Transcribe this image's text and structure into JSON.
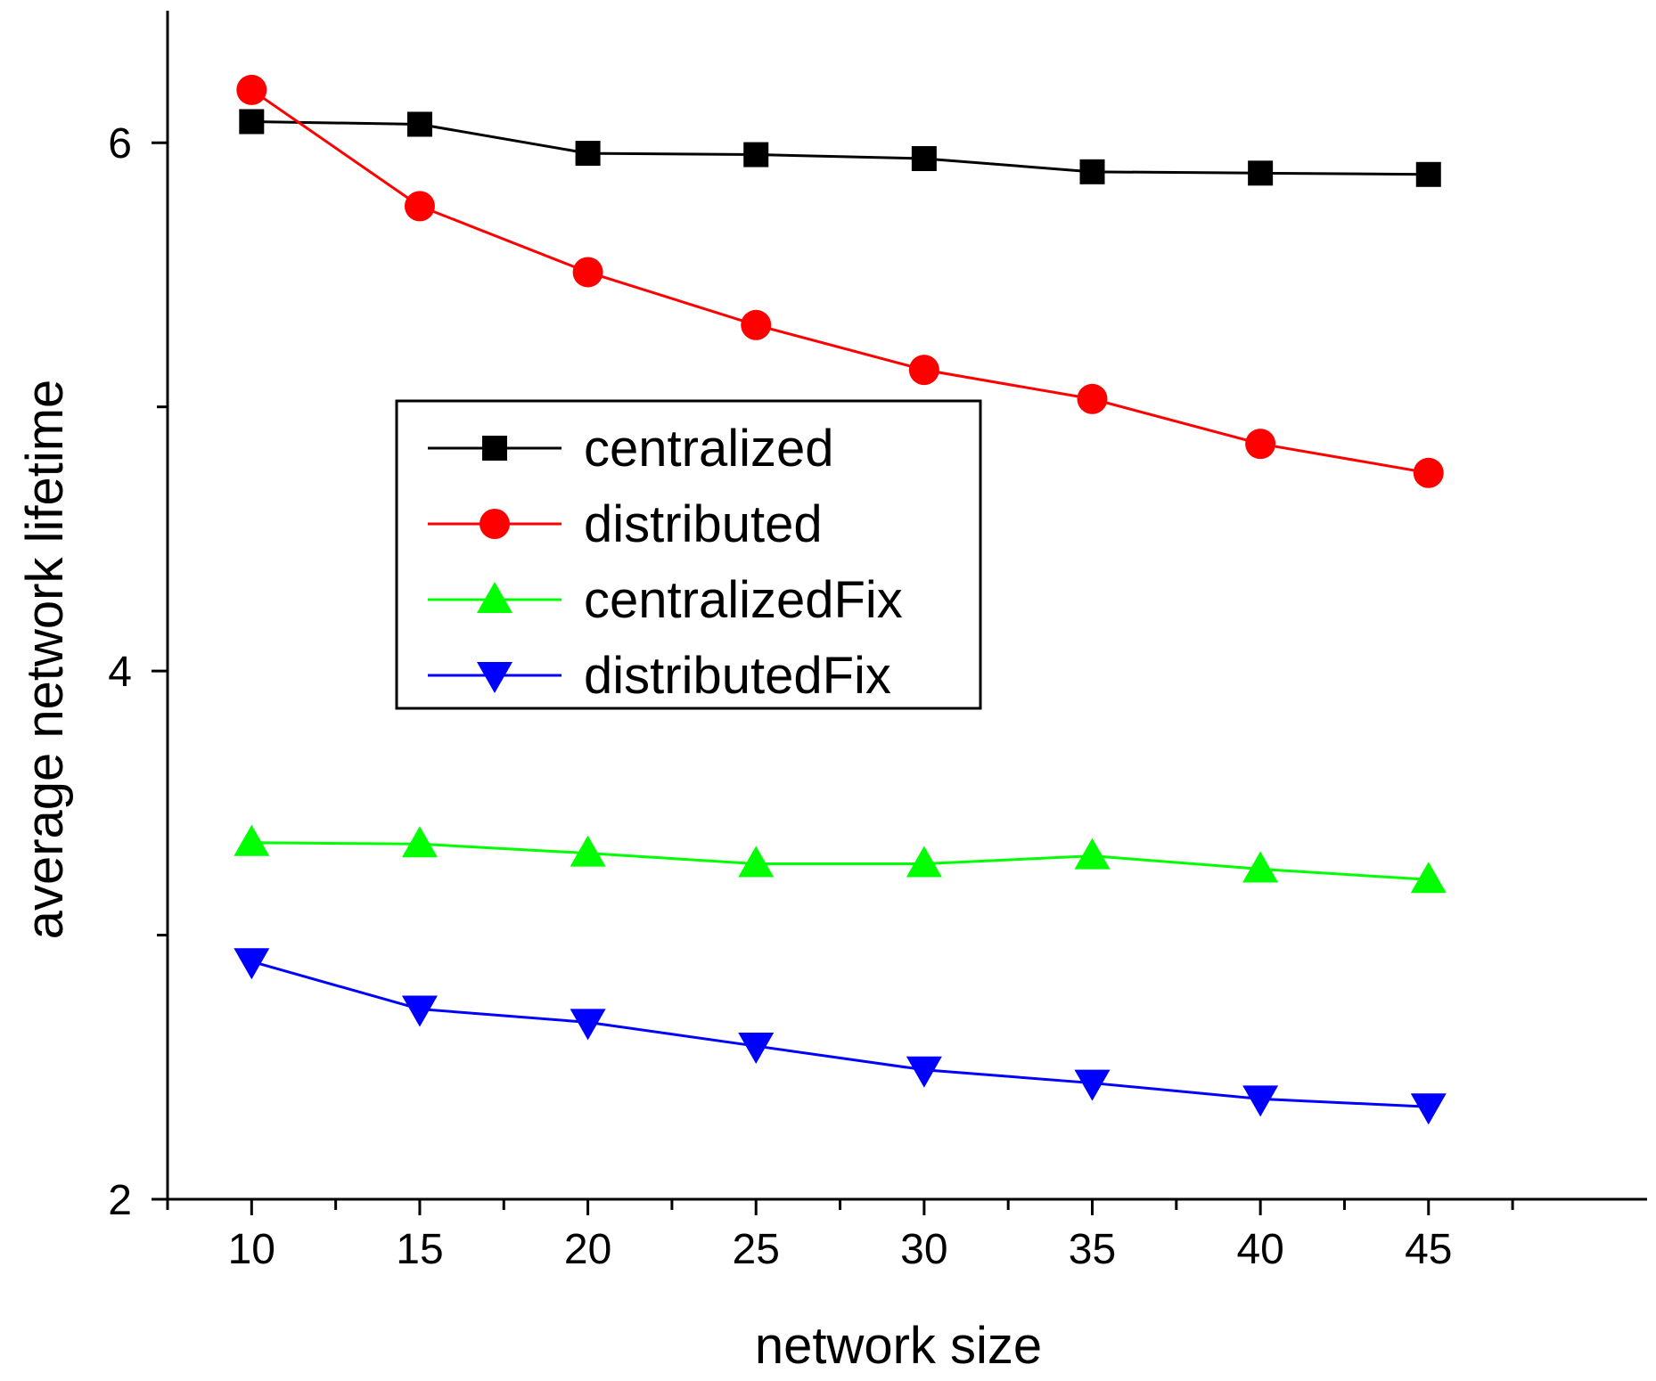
{
  "chart_data": {
    "type": "line",
    "title": "",
    "xlabel": "network size",
    "ylabel": "average network lifetime",
    "x": [
      10,
      15,
      20,
      25,
      30,
      35,
      40,
      45
    ],
    "xlim": [
      7.5,
      51.5
    ],
    "ylim": [
      2,
      6.5
    ],
    "x_ticks_major": [
      10,
      15,
      20,
      25,
      30,
      35,
      40,
      45
    ],
    "x_tick_labels": [
      "10",
      "15",
      "20",
      "25",
      "30",
      "35",
      "40",
      "45"
    ],
    "y_ticks_major": [
      2,
      4,
      6
    ],
    "y_tick_labels": [
      "2",
      "4",
      "6"
    ],
    "y_ticks_minor": [
      3,
      5
    ],
    "grid": false,
    "legend_position": "center-left",
    "series": [
      {
        "name": "centralized",
        "color": "#000000",
        "marker": "square",
        "values": [
          6.08,
          6.07,
          5.96,
          5.955,
          5.94,
          5.89,
          5.885,
          5.88
        ]
      },
      {
        "name": "distributed",
        "color": "#ff0000",
        "marker": "circle",
        "values": [
          6.2,
          5.76,
          5.51,
          5.31,
          5.14,
          5.03,
          4.86,
          4.75
        ]
      },
      {
        "name": "centralizedFix",
        "color": "#00ff00",
        "marker": "triangle-up",
        "values": [
          3.35,
          3.345,
          3.31,
          3.27,
          3.27,
          3.3,
          3.25,
          3.21
        ]
      },
      {
        "name": "distributedFix",
        "color": "#0000ff",
        "marker": "triangle-down",
        "values": [
          2.9,
          2.72,
          2.67,
          2.58,
          2.49,
          2.44,
          2.38,
          2.35
        ]
      }
    ]
  }
}
